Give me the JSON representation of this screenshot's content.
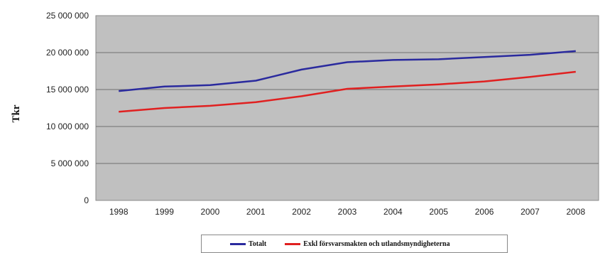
{
  "chart_data": {
    "type": "line",
    "title": "",
    "xlabel": "",
    "ylabel": "Tkr",
    "x": [
      "1998",
      "1999",
      "2000",
      "2001",
      "2002",
      "2003",
      "2004",
      "2005",
      "2006",
      "2007",
      "2008"
    ],
    "yticks": [
      "0",
      "5 000 000",
      "10 000 000",
      "15 000 000",
      "20 000 000",
      "25 000 000"
    ],
    "ylim": [
      0,
      25000000
    ],
    "grid": true,
    "legend_position": "bottom",
    "series": [
      {
        "name": "Totalt",
        "color": "#2a2a9e",
        "values": [
          14800000,
          15400000,
          15600000,
          16200000,
          17700000,
          18700000,
          19000000,
          19100000,
          19400000,
          19700000,
          20200000
        ]
      },
      {
        "name": "Exkl försvarsmakten och utlandsmyndigheterna",
        "color": "#e02020",
        "values": [
          12000000,
          12500000,
          12800000,
          13300000,
          14100000,
          15100000,
          15400000,
          15700000,
          16100000,
          16700000,
          17400000
        ]
      }
    ]
  }
}
